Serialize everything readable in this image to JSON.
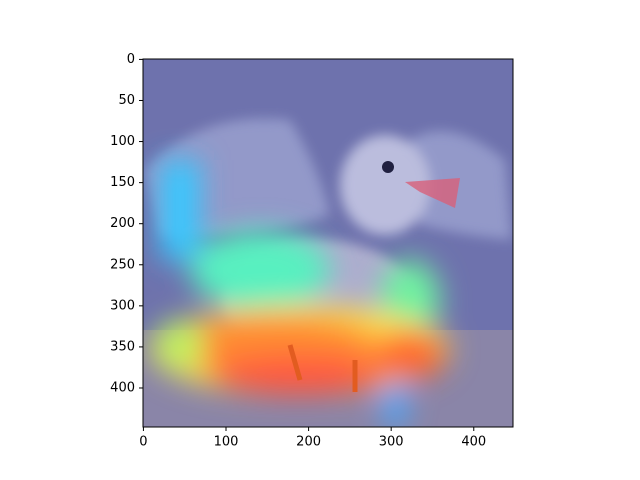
{
  "chart_data": {
    "type": "image",
    "xlim": [
      -0.5,
      447.5
    ],
    "ylim": [
      447.5,
      -0.5
    ],
    "xticks": [
      0,
      100,
      200,
      300,
      400
    ],
    "yticks": [
      0,
      50,
      100,
      150,
      200,
      250,
      300,
      350,
      400
    ]
  }
}
